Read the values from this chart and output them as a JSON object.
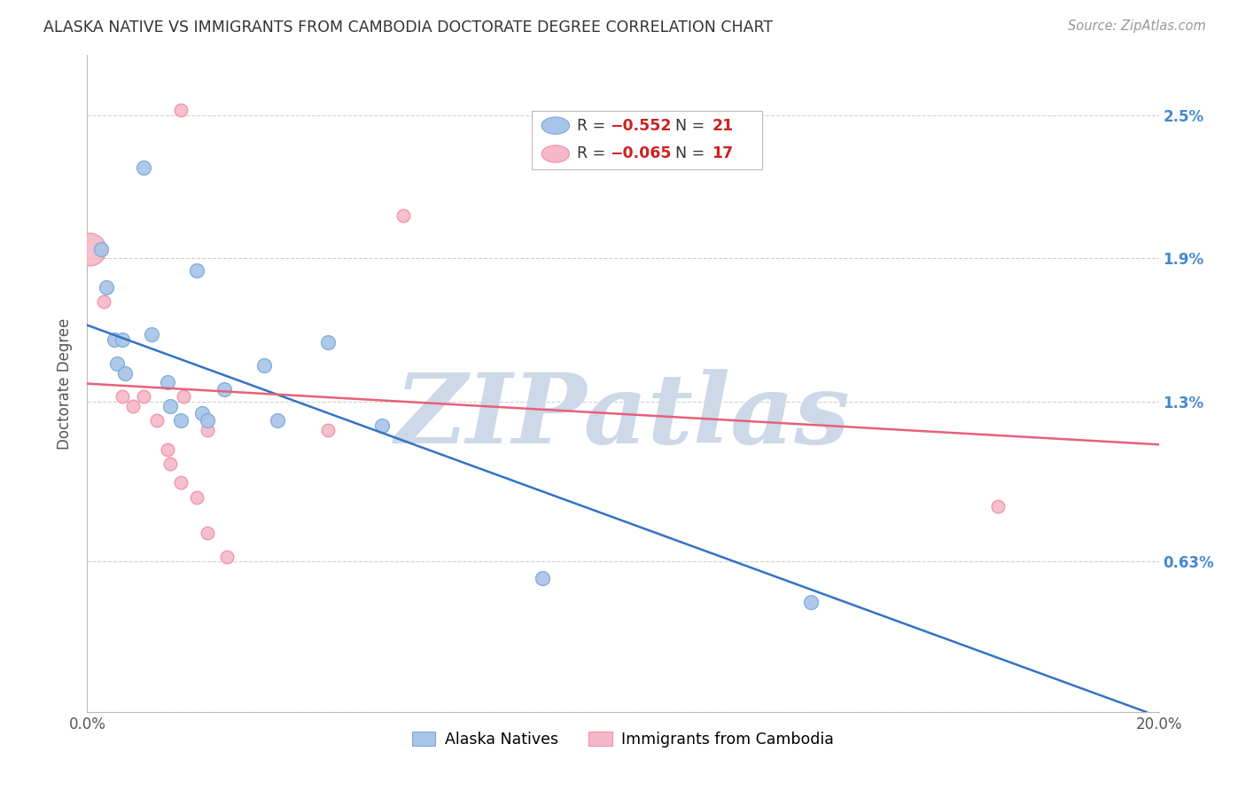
{
  "title": "ALASKA NATIVE VS IMMIGRANTS FROM CAMBODIA DOCTORATE DEGREE CORRELATION CHART",
  "source": "Source: ZipAtlas.com",
  "ylabel": "Doctorate Degree",
  "xlim": [
    0.0,
    20.0
  ],
  "ylim": [
    0.0,
    2.75
  ],
  "yticks": [
    0.0,
    0.63,
    1.3,
    1.9,
    2.5
  ],
  "ytick_labels": [
    "",
    "0.63%",
    "1.3%",
    "1.9%",
    "2.5%"
  ],
  "xticks": [
    0.0,
    2.5,
    5.0,
    7.5,
    10.0,
    12.5,
    15.0,
    17.5,
    20.0
  ],
  "xtick_labels": [
    "0.0%",
    "",
    "",
    "",
    "",
    "",
    "",
    "",
    "20.0%"
  ],
  "legend_text_blue": "R = -0.552   N = 21",
  "legend_text_pink": "R = -0.065   N = 17",
  "legend_r_blue": "-0.552",
  "legend_n_blue": "21",
  "legend_r_pink": "-0.065",
  "legend_n_pink": "17",
  "legend_label_blue": "Alaska Natives",
  "legend_label_pink": "Immigrants from Cambodia",
  "watermark": "ZIPatlas",
  "blue_color": "#a8c4e8",
  "pink_color": "#f5b8c8",
  "blue_edge_color": "#7aaad8",
  "pink_edge_color": "#f090a8",
  "blue_line_color": "#3373c4",
  "pink_line_color": "#e8607a",
  "blue_scatter": [
    [
      0.25,
      1.94
    ],
    [
      0.35,
      1.78
    ],
    [
      0.5,
      1.56
    ],
    [
      0.55,
      1.46
    ],
    [
      0.65,
      1.56
    ],
    [
      0.7,
      1.42
    ],
    [
      1.05,
      2.28
    ],
    [
      1.2,
      1.58
    ],
    [
      1.5,
      1.38
    ],
    [
      1.55,
      1.28
    ],
    [
      1.75,
      1.22
    ],
    [
      2.05,
      1.85
    ],
    [
      2.15,
      1.25
    ],
    [
      2.25,
      1.22
    ],
    [
      2.55,
      1.35
    ],
    [
      3.3,
      1.45
    ],
    [
      3.55,
      1.22
    ],
    [
      4.5,
      1.55
    ],
    [
      5.5,
      1.2
    ],
    [
      8.5,
      0.56
    ],
    [
      13.5,
      0.46
    ]
  ],
  "pink_scatter": [
    [
      0.3,
      1.72
    ],
    [
      0.65,
      1.32
    ],
    [
      0.85,
      1.28
    ],
    [
      1.05,
      1.32
    ],
    [
      1.3,
      1.22
    ],
    [
      1.5,
      1.1
    ],
    [
      1.55,
      1.04
    ],
    [
      1.75,
      0.96
    ],
    [
      1.8,
      1.32
    ],
    [
      2.05,
      0.9
    ],
    [
      2.25,
      0.75
    ],
    [
      2.25,
      1.18
    ],
    [
      2.6,
      0.65
    ],
    [
      4.5,
      1.18
    ],
    [
      17.0,
      0.86
    ]
  ],
  "large_pink_x": 0.05,
  "large_pink_y": 1.94,
  "large_pink_size": 700,
  "pink_high_1_x": 1.75,
  "pink_high_1_y": 2.52,
  "pink_high_2_x": 5.9,
  "pink_high_2_y": 2.08,
  "blue_high_1_x": 1.05,
  "blue_high_1_y": 2.28,
  "blue_point_size": 130,
  "pink_point_size": 110,
  "blue_line_start_x": 0.0,
  "blue_line_start_y": 1.62,
  "blue_line_end_solid_x": 19.76,
  "blue_line_end_y": 0.0,
  "blue_line_dash_x": 19.76,
  "blue_dashed_end_x": 20.0,
  "pink_line_start_x": 0.0,
  "pink_line_start_y": 1.375,
  "pink_line_end_x": 20.0,
  "pink_line_end_y": 1.12,
  "background_color": "#ffffff",
  "grid_color": "#d0d0d0",
  "title_color": "#333333",
  "source_color": "#999999",
  "watermark_color": "#cdd8e8"
}
